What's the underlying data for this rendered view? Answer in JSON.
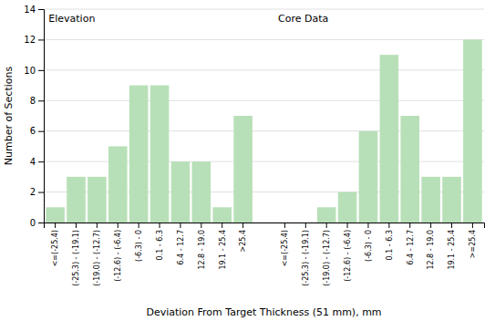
{
  "chart_data": {
    "type": "bar",
    "categories": [
      "<=(-25.4)",
      "(-25.3) - (-19.1)",
      "(-19.0) - (-12.7)",
      "(-12.6) - (-6.4)",
      "(-6.3) - 0",
      "0.1 - 6.3",
      "6.4 - 12.7",
      "12.8 - 19.0",
      "19.1 - 25.4",
      ">25.4",
      "<=(-25.4)",
      "(-25.3) - (-19.1)",
      "(-19.0) - (-12.7)",
      "(-12.6) - (-6.4)",
      "(-6.3) - 0",
      "0.1 - 6.3",
      "6.4 - 12.7",
      "12.8 - 19.0",
      "19.1 - 25.4",
      ">=25.4"
    ],
    "values": [
      1,
      3,
      3,
      5,
      9,
      9,
      4,
      4,
      1,
      7,
      0,
      0,
      1,
      2,
      6,
      11,
      7,
      3,
      3,
      12
    ],
    "color": "#b8e0b8",
    "xlabel": "Deviation From Target Thickness (51 mm), mm",
    "ylabel": "Number of Sections",
    "annotations": [
      "Elevation",
      "Core Data"
    ],
    "ylim": [
      0,
      14
    ],
    "yticks": [
      0,
      2,
      4,
      6,
      8,
      10,
      12,
      14
    ],
    "grid": true
  }
}
